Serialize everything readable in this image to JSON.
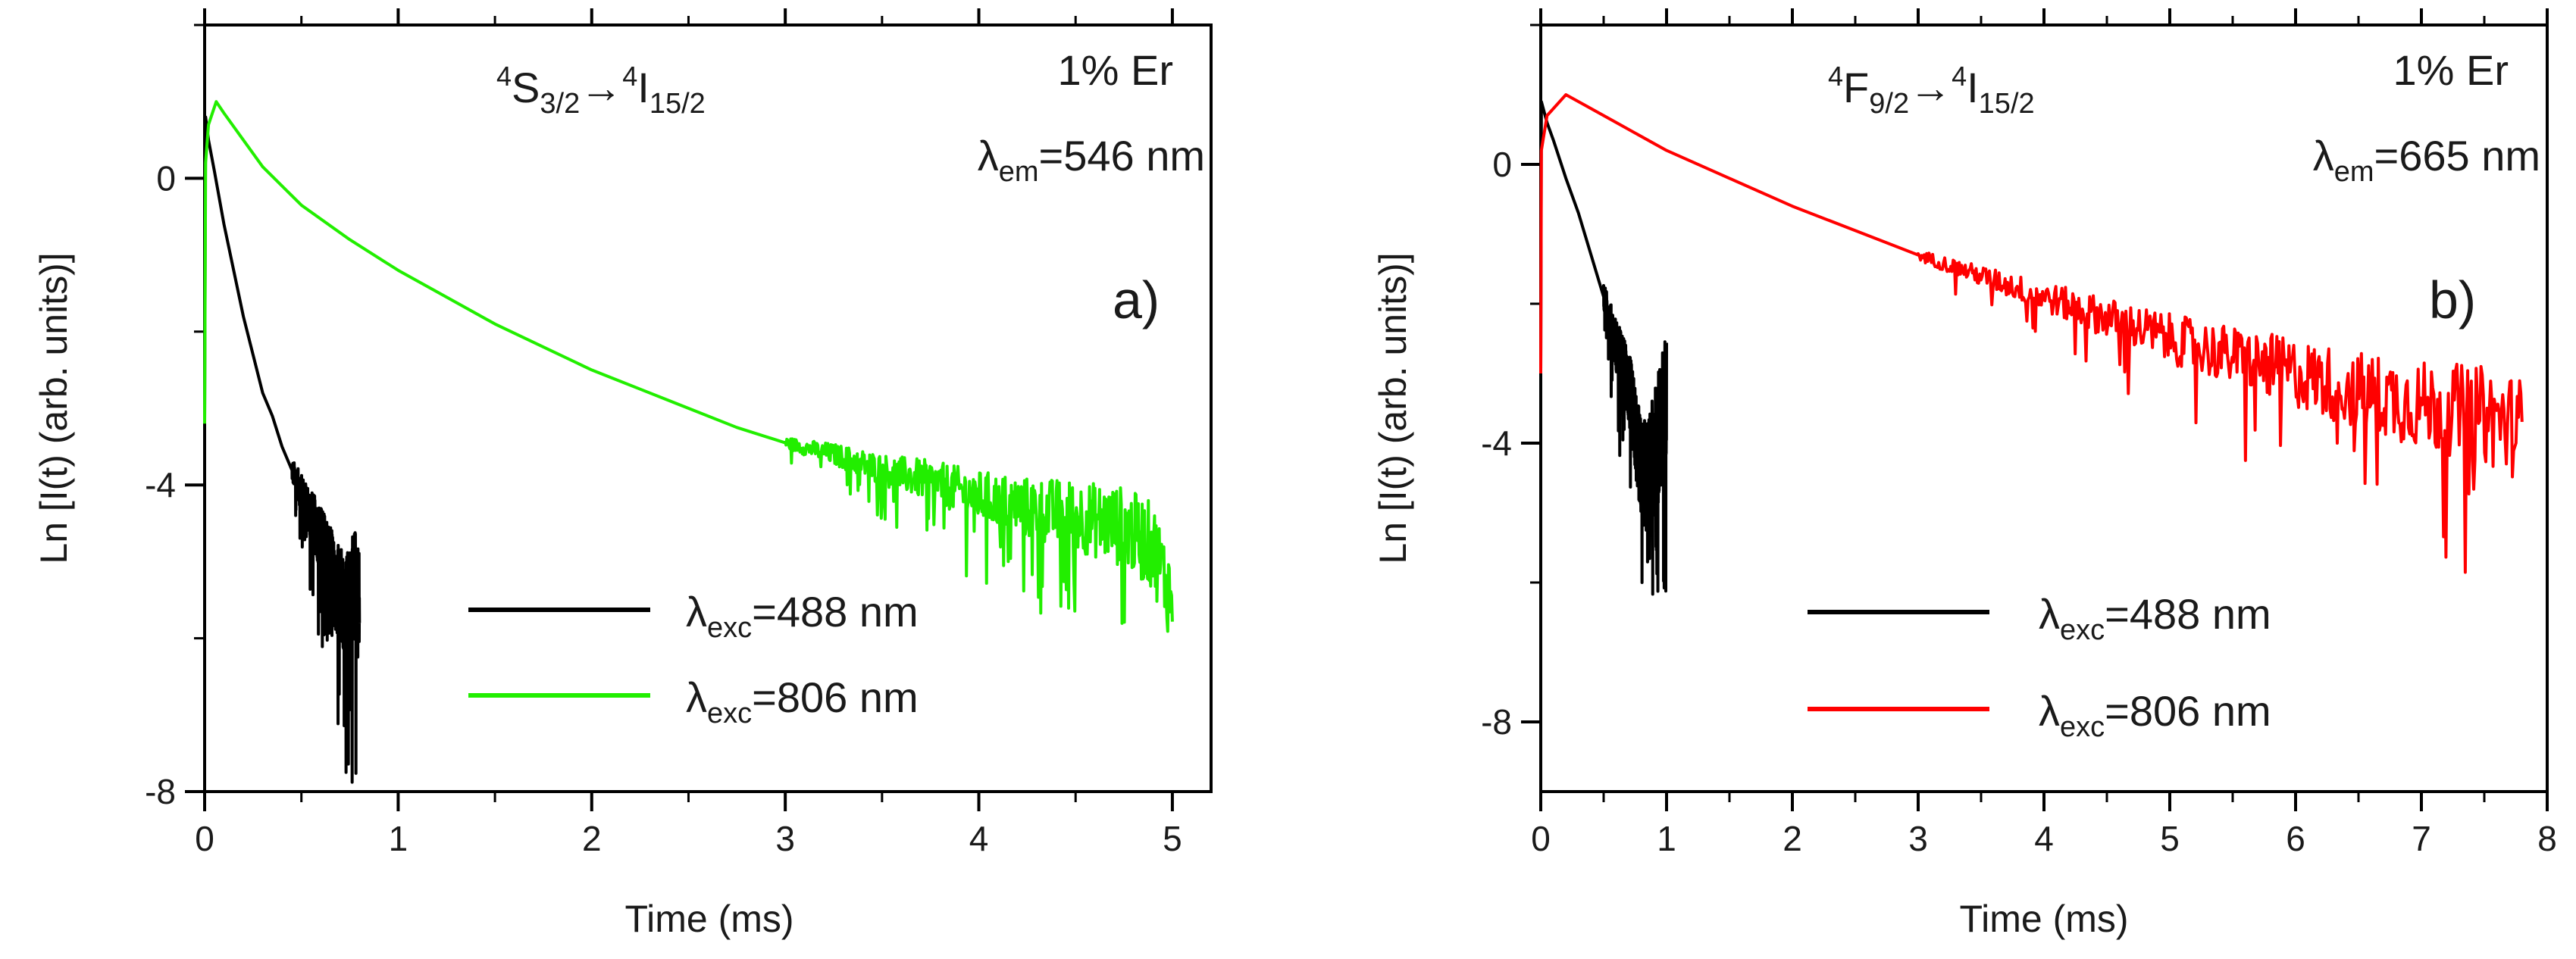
{
  "chart_data": [
    {
      "id": "a",
      "type": "line",
      "panel_label": "a)",
      "transition": {
        "from_sup": "4",
        "from_main": "S",
        "from_sub": "3/2",
        "to_sup": "4",
        "to_main": "I",
        "to_sub": "15/2"
      },
      "concentration": "1% Er",
      "emission": {
        "symbol": "λ",
        "sub": "em",
        "value": "=546 nm"
      },
      "xlabel": "Time (ms)",
      "ylabel": "Ln [I(t) (arb. units)]",
      "xlim": [
        0,
        5.2
      ],
      "ylim": [
        -8,
        2
      ],
      "xticks": [
        0,
        1,
        2,
        3,
        4,
        5
      ],
      "xtick_labels": [
        "0",
        "1",
        "2",
        "3",
        "4",
        "5"
      ],
      "yticks": [
        0,
        -4,
        -8
      ],
      "ytick_labels": [
        "0",
        "-4",
        "-8"
      ],
      "legend_position": "bottom-center",
      "series": [
        {
          "name": "λexc=488 nm",
          "legend": {
            "symbol": "λ",
            "sub": "exc",
            "value": "=488 nm"
          },
          "color": "#000000",
          "points": [
            [
              0,
              -3.2
            ],
            [
              0.005,
              0.8
            ],
            [
              0.02,
              0.5
            ],
            [
              0.05,
              0.1
            ],
            [
              0.1,
              -0.6
            ],
            [
              0.15,
              -1.2
            ],
            [
              0.2,
              -1.8
            ],
            [
              0.25,
              -2.3
            ],
            [
              0.3,
              -2.8
            ],
            [
              0.35,
              -3.1
            ],
            [
              0.4,
              -3.5
            ],
            [
              0.45,
              -3.8
            ],
            [
              0.5,
              -4.1
            ],
            [
              0.55,
              -4.4
            ],
            [
              0.6,
              -4.7
            ],
            [
              0.65,
              -5.0
            ],
            [
              0.68,
              -5.5
            ],
            [
              0.7,
              -5.2
            ],
            [
              0.72,
              -5.6
            ],
            [
              0.75,
              -5.5
            ],
            [
              0.78,
              -5.3
            ],
            [
              0.8,
              -5.6
            ]
          ],
          "noise": {
            "start": 0.45,
            "end": 0.8,
            "amp_start": 0.3,
            "amp_end": 1.6
          }
        },
        {
          "name": "λexc=806 nm",
          "legend": {
            "symbol": "λ",
            "sub": "exc",
            "value": "=806 nm"
          },
          "color": "#22ee00",
          "points": [
            [
              0,
              -3.2
            ],
            [
              0.005,
              0.2
            ],
            [
              0.02,
              0.7
            ],
            [
              0.06,
              1.0
            ],
            [
              0.1,
              0.85
            ],
            [
              0.2,
              0.5
            ],
            [
              0.3,
              0.15
            ],
            [
              0.5,
              -0.35
            ],
            [
              0.75,
              -0.8
            ],
            [
              1.0,
              -1.2
            ],
            [
              1.25,
              -1.55
            ],
            [
              1.5,
              -1.9
            ],
            [
              1.75,
              -2.2
            ],
            [
              2.0,
              -2.5
            ],
            [
              2.25,
              -2.75
            ],
            [
              2.5,
              -3.0
            ],
            [
              2.75,
              -3.25
            ],
            [
              3.0,
              -3.45
            ],
            [
              3.25,
              -3.6
            ],
            [
              3.5,
              -3.8
            ],
            [
              3.75,
              -3.95
            ],
            [
              4.0,
              -4.15
            ],
            [
              4.25,
              -4.3
            ],
            [
              4.5,
              -4.4
            ],
            [
              4.75,
              -4.55
            ],
            [
              4.9,
              -4.8
            ],
            [
              5.0,
              -5.5
            ]
          ],
          "noise": {
            "start": 3.0,
            "end": 5.0,
            "amp_start": 0.15,
            "amp_end": 1.2
          }
        }
      ]
    },
    {
      "id": "b",
      "type": "line",
      "panel_label": "b)",
      "transition": {
        "from_sup": "4",
        "from_main": "F",
        "from_sub": "9/2",
        "to_sup": "4",
        "to_main": "I",
        "to_sub": "15/2"
      },
      "concentration": "1% Er",
      "emission": {
        "symbol": "λ",
        "sub": "em",
        "value": "=665 nm"
      },
      "xlabel": "Time (ms)",
      "ylabel": "Ln [I(t) (arb. units)]",
      "xlim": [
        0,
        8
      ],
      "ylim": [
        -9,
        2
      ],
      "xticks": [
        0,
        1,
        2,
        3,
        4,
        5,
        6,
        7,
        8
      ],
      "xtick_labels": [
        "0",
        "1",
        "2",
        "3",
        "4",
        "5",
        "6",
        "7",
        "8"
      ],
      "yticks": [
        0,
        -4,
        -8
      ],
      "ytick_labels": [
        "0",
        "-4",
        "-8"
      ],
      "legend_position": "bottom-center",
      "series": [
        {
          "name": "λexc=488 nm",
          "legend": {
            "symbol": "λ",
            "sub": "exc",
            "value": "=488 nm"
          },
          "color": "#000000",
          "points": [
            [
              0,
              -3.0
            ],
            [
              0.005,
              0.9
            ],
            [
              0.05,
              0.6
            ],
            [
              0.1,
              0.35
            ],
            [
              0.2,
              -0.2
            ],
            [
              0.3,
              -0.7
            ],
            [
              0.4,
              -1.3
            ],
            [
              0.5,
              -1.9
            ],
            [
              0.6,
              -2.6
            ],
            [
              0.7,
              -3.2
            ],
            [
              0.75,
              -3.8
            ],
            [
              0.8,
              -4.4
            ],
            [
              0.85,
              -4.5
            ],
            [
              0.9,
              -4.2
            ],
            [
              0.95,
              -3.8
            ],
            [
              1.0,
              -3.5
            ]
          ],
          "noise": {
            "start": 0.5,
            "end": 1.0,
            "amp_start": 0.4,
            "amp_end": 2.2
          }
        },
        {
          "name": "λexc=806 nm",
          "legend": {
            "symbol": "λ",
            "sub": "exc",
            "value": "=806 nm"
          },
          "color": "#ff0000",
          "points": [
            [
              0,
              -3.0
            ],
            [
              0.005,
              0.2
            ],
            [
              0.05,
              0.7
            ],
            [
              0.2,
              1.0
            ],
            [
              0.35,
              0.85
            ],
            [
              0.6,
              0.6
            ],
            [
              1.0,
              0.2
            ],
            [
              1.5,
              -0.2
            ],
            [
              2.0,
              -0.6
            ],
            [
              2.5,
              -0.95
            ],
            [
              3.0,
              -1.3
            ],
            [
              3.5,
              -1.6
            ],
            [
              4.0,
              -1.9
            ],
            [
              4.5,
              -2.2
            ],
            [
              5.0,
              -2.5
            ],
            [
              5.5,
              -2.75
            ],
            [
              6.0,
              -3.0
            ],
            [
              6.5,
              -3.25
            ],
            [
              7.0,
              -3.45
            ],
            [
              7.5,
              -3.6
            ],
            [
              7.8,
              -3.8
            ]
          ],
          "noise": {
            "start": 3.0,
            "end": 7.8,
            "amp_start": 0.15,
            "amp_end": 1.5
          }
        }
      ]
    }
  ]
}
